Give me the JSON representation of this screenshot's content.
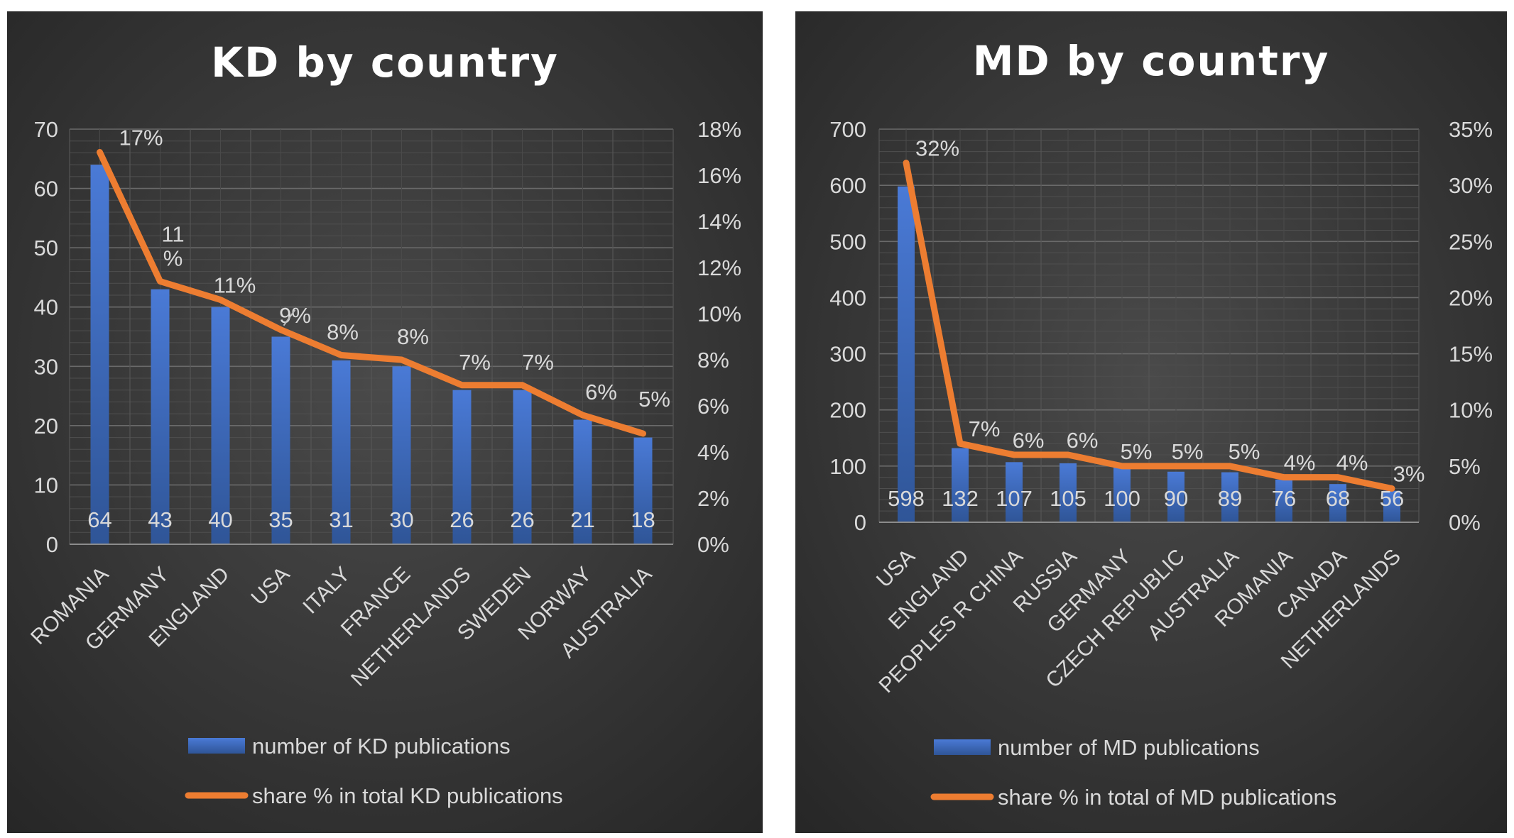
{
  "chart_data": [
    {
      "type": "bar",
      "title": "KD by country",
      "categories": [
        "ROMANIA",
        "GERMANY",
        "ENGLAND",
        "USA",
        "ITALY",
        "FRANCE",
        "NETHERLANDS",
        "SWEDEN",
        "NORWAY",
        "AUSTRALIA"
      ],
      "series": [
        {
          "name": "number of KD publications",
          "type": "bar",
          "axis": "left",
          "values": [
            64,
            43,
            40,
            35,
            31,
            30,
            26,
            26,
            21,
            18
          ],
          "labels": [
            "64",
            "43",
            "40",
            "35",
            "31",
            "30",
            "26",
            "26",
            "21",
            "18"
          ]
        },
        {
          "name": "share % in total KD publications",
          "type": "line",
          "axis": "right",
          "values": [
            17,
            11.4,
            10.6,
            9.3,
            8.2,
            8.0,
            6.9,
            6.9,
            5.6,
            4.8
          ],
          "labels": [
            "17%",
            "11%",
            "11%",
            "9%",
            "8%",
            "8%",
            "7%",
            "7%",
            "6%",
            "5%"
          ]
        }
      ],
      "ylim": [
        0,
        70
      ],
      "yticks": [
        "0",
        "10",
        "20",
        "30",
        "40",
        "50",
        "60",
        "70"
      ],
      "y2lim": [
        0,
        18
      ],
      "y2ticks": [
        "0%",
        "2%",
        "4%",
        "6%",
        "8%",
        "10%",
        "12%",
        "14%",
        "16%",
        "18%"
      ],
      "xlabel": "",
      "ylabel": "",
      "legend": "bottom",
      "colors": {
        "bar": "#4472c4",
        "line": "#ed7d31"
      }
    },
    {
      "type": "bar",
      "title": "MD by country",
      "categories": [
        "USA",
        "ENGLAND",
        "PEOPLES R CHINA",
        "RUSSIA",
        "GERMANY",
        "CZECH REPUBLIC",
        "AUSTRALIA",
        "ROMANIA",
        "CANADA",
        "NETHERLANDS"
      ],
      "series": [
        {
          "name": "number of MD publications",
          "type": "bar",
          "axis": "left",
          "values": [
            598,
            132,
            107,
            105,
            100,
            90,
            89,
            76,
            68,
            56
          ],
          "labels": [
            "598",
            "132",
            "107",
            "105",
            "100",
            "90",
            "89",
            "76",
            "68",
            "56"
          ]
        },
        {
          "name": "share % in total of MD publications",
          "type": "line",
          "axis": "right",
          "values": [
            32,
            7,
            6,
            6,
            5,
            5,
            5,
            4,
            4,
            3
          ],
          "labels": [
            "32%",
            "7%",
            "6%",
            "6%",
            "5%",
            "5%",
            "5%",
            "4%",
            "4%",
            "3%"
          ]
        }
      ],
      "ylim": [
        0,
        700
      ],
      "yticks": [
        "0",
        "100",
        "200",
        "300",
        "400",
        "500",
        "600",
        "700"
      ],
      "y2lim": [
        0,
        35
      ],
      "y2ticks": [
        "0%",
        "5%",
        "10%",
        "15%",
        "20%",
        "25%",
        "30%",
        "35%"
      ],
      "xlabel": "",
      "ylabel": "",
      "legend": "bottom",
      "colors": {
        "bar": "#4472c4",
        "line": "#ed7d31"
      }
    }
  ]
}
